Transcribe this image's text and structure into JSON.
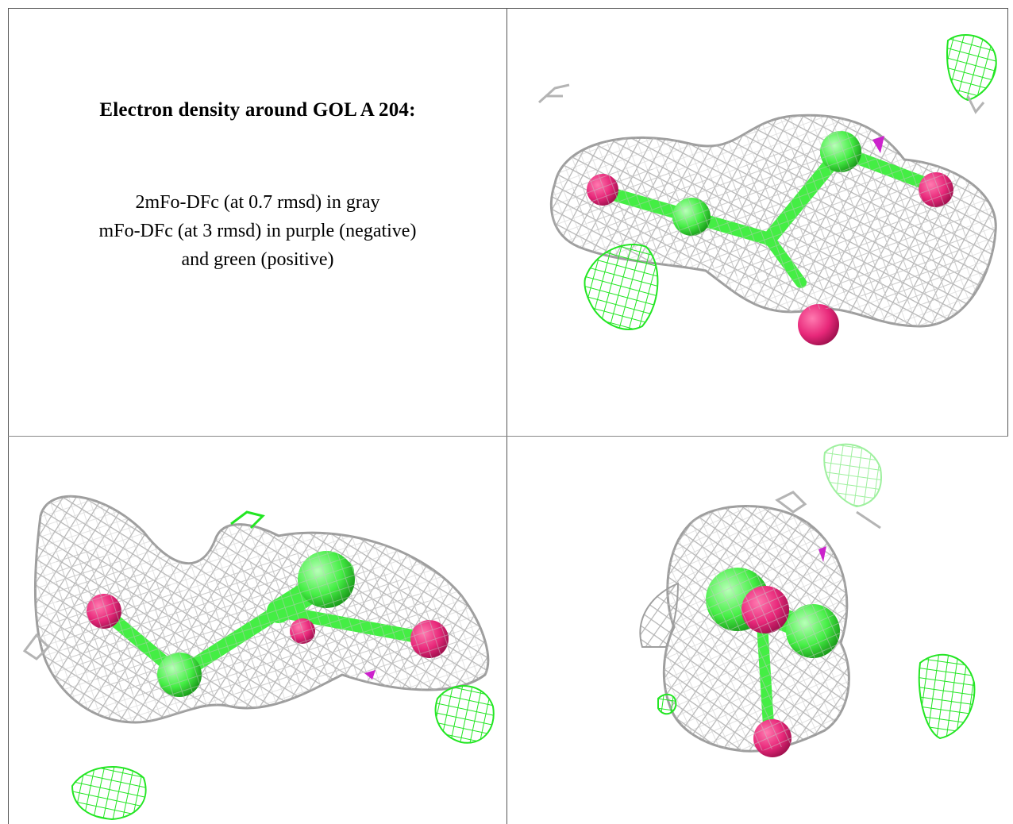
{
  "caption": {
    "title": "Electron density around GOL A 204:",
    "line1": "2mFo-DFc (at 0.7 rmsd) in gray",
    "line2": "mFo-DFc (at 3 rmsd) in purple (negative)",
    "line3": "and green (positive)"
  },
  "colors": {
    "mesh_2fofc": "#b4b4b4",
    "mesh_fofc_positive": "#22e622",
    "mesh_fofc_negative": "#cc22cc",
    "carbon": "#44ee44",
    "oxygen": "#e8287a"
  },
  "panels": [
    {
      "name": "view-top-right"
    },
    {
      "name": "view-bottom-left"
    },
    {
      "name": "view-bottom-right"
    }
  ]
}
